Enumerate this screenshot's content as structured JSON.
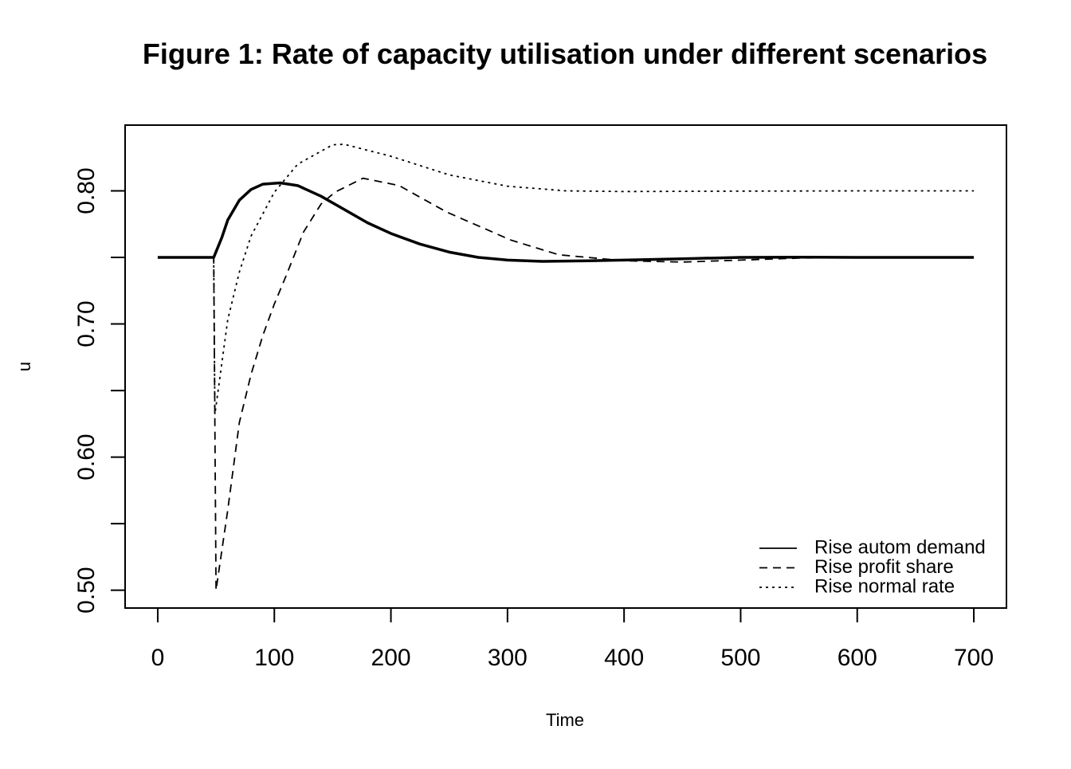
{
  "chart_data": {
    "type": "line",
    "title": "Figure 1: Rate of capacity utilisation under different scenarios",
    "xlabel": "Time",
    "ylabel": "u",
    "xlim": [
      -28,
      728
    ],
    "ylim": [
      0.4866,
      0.8494
    ],
    "xticks": [
      0,
      100,
      200,
      300,
      400,
      500,
      600,
      700
    ],
    "yticks": [
      {
        "value": 0.5,
        "label": "0.50"
      },
      {
        "value": 0.6,
        "label": "0.60"
      },
      {
        "value": 0.7,
        "label": "0.70"
      },
      {
        "value": 0.8,
        "label": "0.80"
      }
    ],
    "yminor_ticks": [
      0.55,
      0.65,
      0.75
    ],
    "legend": "bottomright",
    "series": [
      {
        "name": "Rise autom demand",
        "color": "#000000",
        "linestyle": "solid",
        "x": [
          0,
          48,
          55,
          60,
          70,
          80,
          90,
          105,
          120,
          140,
          160,
          180,
          200,
          225,
          250,
          275,
          300,
          330,
          370,
          400,
          450,
          500,
          550,
          600,
          700
        ],
        "values": [
          0.75,
          0.75,
          0.765,
          0.778,
          0.793,
          0.801,
          0.805,
          0.806,
          0.804,
          0.796,
          0.786,
          0.776,
          0.768,
          0.76,
          0.754,
          0.75,
          0.748,
          0.747,
          0.7475,
          0.748,
          0.749,
          0.75,
          0.7502,
          0.75,
          0.75
        ]
      },
      {
        "name": "Rise profit share",
        "color": "#000000",
        "linestyle": "dashed",
        "x": [
          0,
          48,
          50,
          60,
          70,
          80,
          90,
          100,
          110,
          125,
          140,
          152,
          176,
          207,
          248,
          303,
          344,
          400,
          450,
          500,
          550,
          600,
          700
        ],
        "values": [
          0.75,
          0.75,
          0.5,
          0.56,
          0.626,
          0.662,
          0.691,
          0.715,
          0.736,
          0.769,
          0.79,
          0.799,
          0.8095,
          0.804,
          0.784,
          0.763,
          0.752,
          0.7475,
          0.7465,
          0.748,
          0.7495,
          0.75,
          0.75
        ]
      },
      {
        "name": "Rise normal rate",
        "color": "#000000",
        "linestyle": "dotted",
        "x": [
          0,
          48,
          49,
          60,
          70,
          80,
          100,
          120,
          150,
          160,
          200,
          250,
          300,
          350,
          400,
          500,
          600,
          700
        ],
        "values": [
          0.75,
          0.75,
          0.632,
          0.703,
          0.739,
          0.766,
          0.799,
          0.82,
          0.8346,
          0.835,
          0.826,
          0.812,
          0.8035,
          0.8,
          0.7995,
          0.7998,
          0.8,
          0.8
        ]
      }
    ]
  }
}
